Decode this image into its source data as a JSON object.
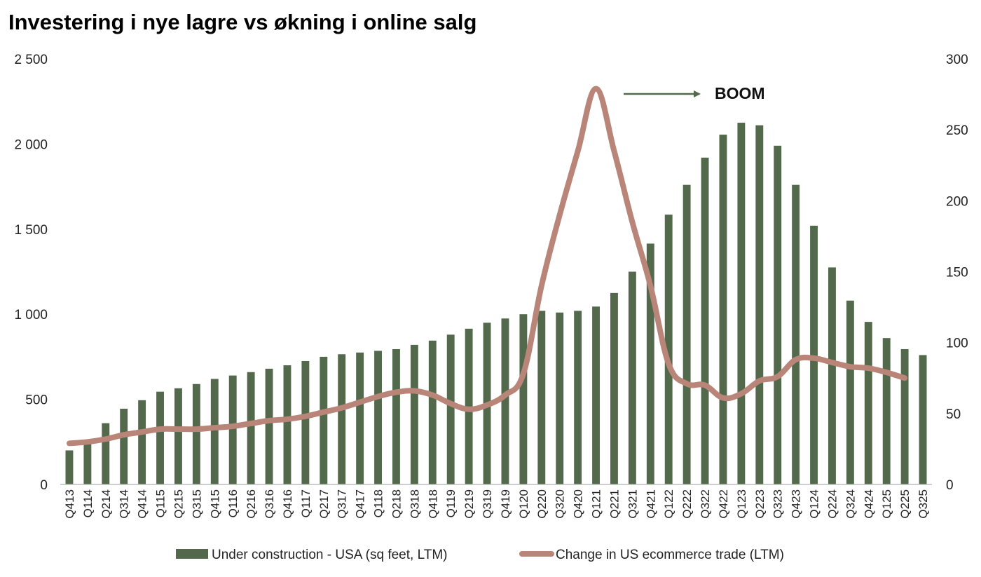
{
  "chart_data": {
    "type": "bar",
    "title": "Investering i nye lagre vs økning i online salg",
    "categories": [
      "Q413",
      "Q114",
      "Q214",
      "Q314",
      "Q414",
      "Q115",
      "Q215",
      "Q315",
      "Q415",
      "Q116",
      "Q216",
      "Q316",
      "Q416",
      "Q117",
      "Q217",
      "Q317",
      "Q417",
      "Q118",
      "Q218",
      "Q318",
      "Q418",
      "Q119",
      "Q219",
      "Q319",
      "Q419",
      "Q120",
      "Q220",
      "Q320",
      "Q420",
      "Q121",
      "Q221",
      "Q321",
      "Q421",
      "Q122",
      "Q222",
      "Q322",
      "Q422",
      "Q123",
      "Q223",
      "Q323",
      "Q423",
      "Q124",
      "Q224",
      "Q324",
      "Q424",
      "Q125",
      "Q225",
      "Q325"
    ],
    "y_left": {
      "ylim": [
        0,
        2500
      ],
      "ticks": [
        0,
        500,
        1000,
        1500,
        2000,
        2500
      ],
      "tick_labels": [
        "0",
        "500",
        "1 000",
        "1 500",
        "2 000",
        "2 500"
      ]
    },
    "y_right": {
      "ylim": [
        0,
        300
      ],
      "ticks": [
        0,
        50,
        100,
        150,
        200,
        250,
        300
      ],
      "tick_labels": [
        "0",
        "50",
        "100",
        "150",
        "200",
        "250",
        "300"
      ]
    },
    "series": [
      {
        "name": "Under construction - USA (sq feet, LTM)",
        "type": "bar",
        "axis": "left",
        "color": "#52694b",
        "values": [
          200,
          250,
          360,
          445,
          495,
          545,
          565,
          590,
          620,
          640,
          660,
          680,
          700,
          725,
          750,
          765,
          775,
          785,
          795,
          820,
          845,
          880,
          915,
          950,
          975,
          1000,
          1020,
          1010,
          1020,
          1045,
          1125,
          1250,
          1415,
          1585,
          1760,
          1920,
          2055,
          2125,
          2110,
          1990,
          1760,
          1520,
          1275,
          1080,
          955,
          860,
          795,
          760
        ]
      },
      {
        "name": "Change in US ecommerce trade (LTM)",
        "type": "line",
        "axis": "right",
        "color": "#b88578",
        "values": [
          29,
          30,
          32,
          35,
          37,
          39,
          39,
          39,
          40,
          41,
          43,
          45,
          46,
          48,
          51,
          54,
          58,
          62,
          65,
          66,
          63,
          57,
          53,
          56,
          63,
          78,
          140,
          190,
          235,
          279,
          235,
          185,
          140,
          85,
          71,
          70,
          61,
          64,
          73,
          76,
          88,
          89,
          86,
          83,
          82,
          79,
          75,
          null
        ]
      }
    ],
    "annotations": [
      {
        "text": "BOOM",
        "arrow": true
      }
    ],
    "legend": "bottom",
    "grid": false
  }
}
